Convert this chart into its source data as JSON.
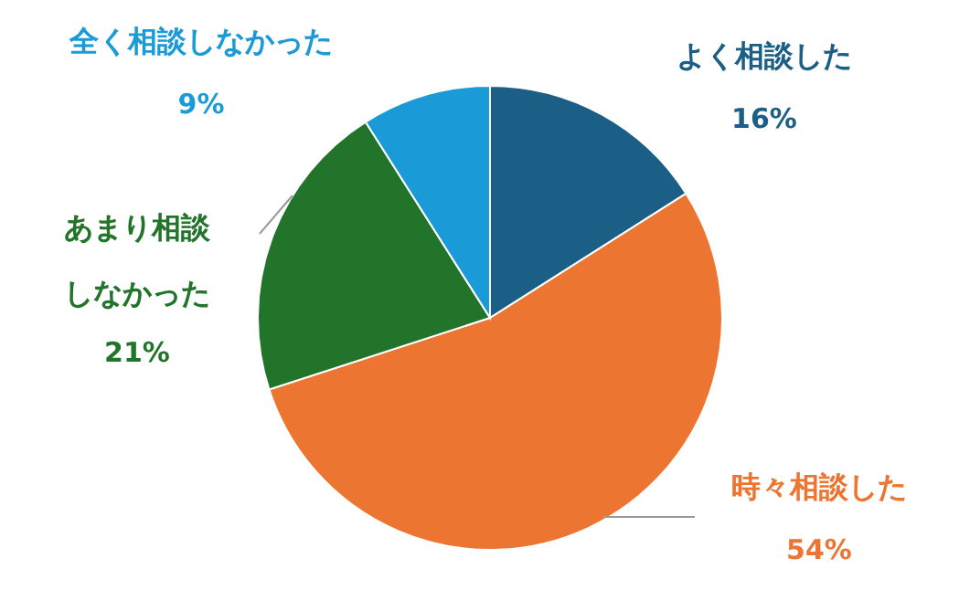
{
  "chart_data": {
    "type": "pie",
    "categories": [
      "よく相談した",
      "時々相談した",
      "あまり相談しなかった",
      "全く相談しなかった"
    ],
    "values": [
      16,
      54,
      21,
      9
    ],
    "value_labels": [
      "16%",
      "54%",
      "21%",
      "9%"
    ],
    "colors": [
      "#1b5f86",
      "#ec7532",
      "#22742a",
      "#1a9bd7"
    ]
  }
}
